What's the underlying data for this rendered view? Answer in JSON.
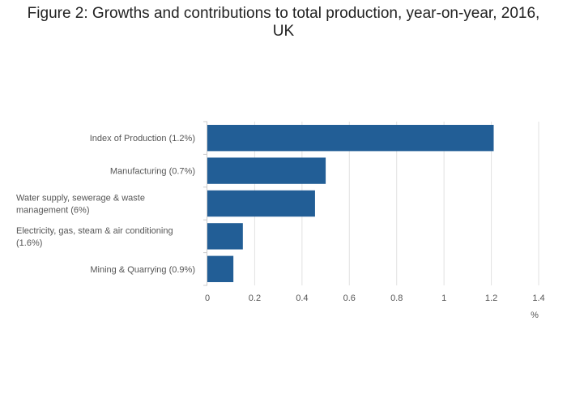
{
  "chart_data": {
    "type": "bar",
    "orientation": "horizontal",
    "title_lines": [
      "Figure 2: Growths and contributions to total production, year-on-year, 2016,",
      "UK"
    ],
    "categories": [
      "Index of Production (1.2%)",
      "Manufacturing (0.7%)",
      "Water supply, sewerage & waste management (6%)",
      "Electricity, gas, steam & air conditioning (1.6%)",
      "Mining & Quarrying (0.9%)"
    ],
    "category_lines": [
      [
        "Index of Production (1.2%)"
      ],
      [
        "Manufacturing (0.7%)"
      ],
      [
        "Water supply, sewerage & waste",
        "management (6%)"
      ],
      [
        "Electricity, gas, steam & air conditioning",
        "(1.6%)"
      ],
      [
        "Mining & Quarrying (0.9%)"
      ]
    ],
    "values": [
      1.21,
      0.5,
      0.455,
      0.15,
      0.11
    ],
    "xlim": [
      0,
      1.4
    ],
    "xticks": [
      0,
      0.2,
      0.4,
      0.6,
      0.8,
      1,
      1.2,
      1.4
    ],
    "xtick_labels": [
      "0",
      "0.2",
      "0.4",
      "0.6",
      "0.8",
      "1",
      "1.2",
      "1.4"
    ],
    "xlabel": "%",
    "ylabel": "",
    "grid": true,
    "bar_color": "#225e96",
    "grid_color": "#e2e2e2",
    "axis_color": "#cccccc"
  }
}
